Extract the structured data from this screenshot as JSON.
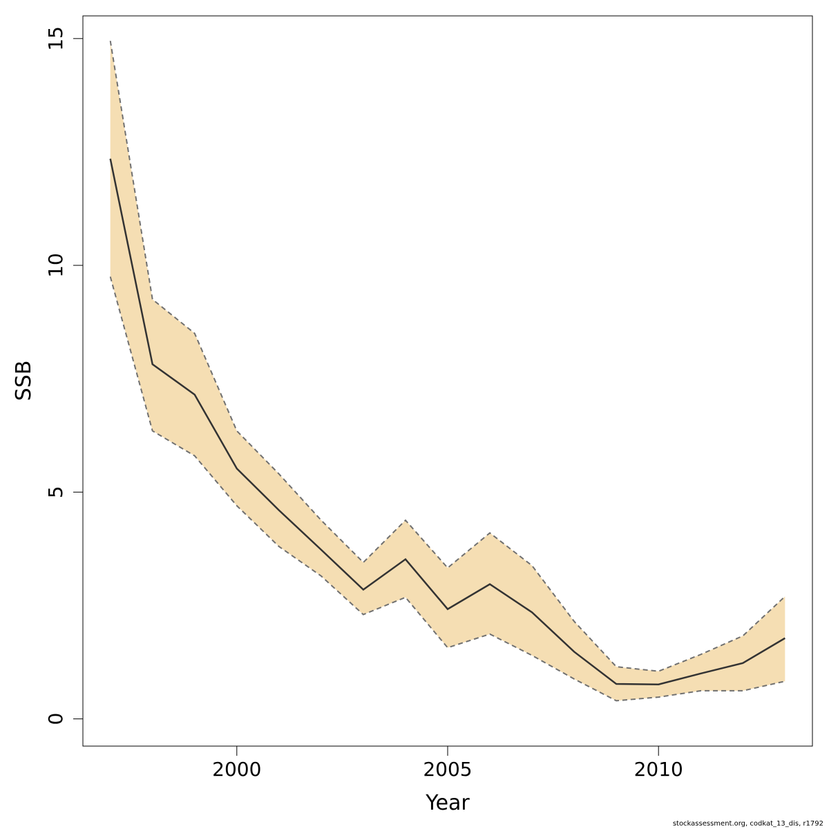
{
  "chart_data": {
    "type": "area",
    "xlabel": "Year",
    "ylabel": "SSB",
    "xlim": [
      1996.35,
      2013.65
    ],
    "ylim": [
      -0.6,
      15.5
    ],
    "x_ticks": [
      2000,
      2005,
      2010
    ],
    "y_ticks": [
      0,
      5,
      10,
      15
    ],
    "grid": false,
    "legend": "none",
    "x": [
      1997,
      1998,
      1999,
      2000,
      2001,
      2002,
      2003,
      2004,
      2005,
      2006,
      2007,
      2008,
      2009,
      2010,
      2011,
      2012,
      2013
    ],
    "series": [
      {
        "role": "estimate",
        "values": [
          12.35,
          7.82,
          7.15,
          5.52,
          4.6,
          3.73,
          2.85,
          3.52,
          2.42,
          2.97,
          2.35,
          1.48,
          0.77,
          0.76,
          1.0,
          1.23,
          1.78
        ]
      },
      {
        "role": "upper",
        "values": [
          14.95,
          9.25,
          8.5,
          6.35,
          5.4,
          4.38,
          3.45,
          4.38,
          3.33,
          4.1,
          3.38,
          2.15,
          1.15,
          1.05,
          1.42,
          1.83,
          2.7
        ]
      },
      {
        "role": "lower",
        "values": [
          9.75,
          6.35,
          5.8,
          4.7,
          3.8,
          3.15,
          2.3,
          2.68,
          1.57,
          1.87,
          1.4,
          0.88,
          0.4,
          0.48,
          0.62,
          0.62,
          0.83
        ]
      }
    ],
    "colors": {
      "band": "#f5deb3",
      "line": "#333333",
      "bounds": "#707070"
    }
  },
  "footer": "stockassessment.org, codkat_13_dis, r1792"
}
